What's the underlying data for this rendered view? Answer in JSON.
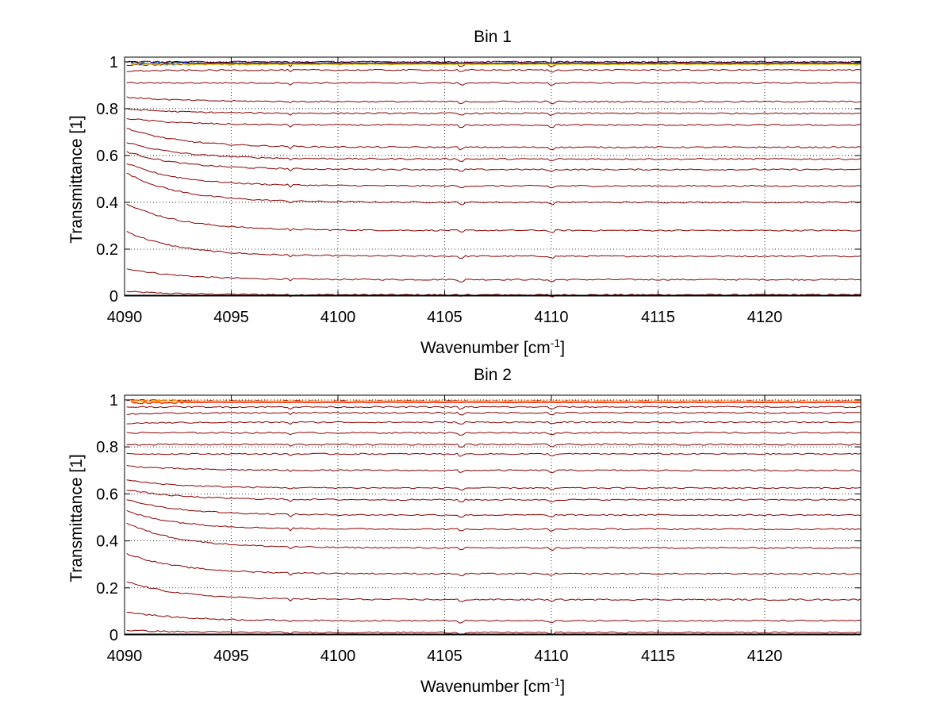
{
  "chart_data": [
    {
      "type": "line",
      "title": "Bin 1",
      "xlabel": "Wavenumber [cm",
      "xlabel_superscript": "-1",
      "xlabel_suffix": "]",
      "ylabel": "Transmittance [1]",
      "xlim": [
        4090,
        4124.5
      ],
      "ylim": [
        0,
        1.02
      ],
      "xticks": [
        4090,
        4095,
        4100,
        4105,
        4110,
        4115,
        4120
      ],
      "xtick_labels": [
        "4090",
        "4095",
        "4100",
        "4105",
        "4110",
        "4115",
        "4120"
      ],
      "yticks": [
        0,
        0.2,
        0.4,
        0.6,
        0.8,
        1
      ],
      "ytick_labels": [
        "0",
        "0.2",
        "0.4",
        "0.6",
        "0.8",
        "1"
      ],
      "grid": true,
      "series_color": "#8b0000",
      "top_series_colors": [
        "#000000",
        "#0000ff",
        "#00aaff",
        "#ffcc00"
      ],
      "series": [
        {
          "name": "s1",
          "start": 0.02,
          "plateau": 0.005
        },
        {
          "name": "s2",
          "start": 0.12,
          "plateau": 0.07
        },
        {
          "name": "s3",
          "start": 0.28,
          "plateau": 0.17
        },
        {
          "name": "s4",
          "start": 0.4,
          "plateau": 0.28
        },
        {
          "name": "s5",
          "start": 0.53,
          "plateau": 0.4
        },
        {
          "name": "s6",
          "start": 0.57,
          "plateau": 0.47
        },
        {
          "name": "s7",
          "start": 0.62,
          "plateau": 0.54
        },
        {
          "name": "s8",
          "start": 0.66,
          "plateau": 0.585
        },
        {
          "name": "s9",
          "start": 0.72,
          "plateau": 0.635
        },
        {
          "name": "s10",
          "start": 0.76,
          "plateau": 0.73
        },
        {
          "name": "s11",
          "start": 0.8,
          "plateau": 0.78
        },
        {
          "name": "s12",
          "start": 0.85,
          "plateau": 0.83
        },
        {
          "name": "s13",
          "start": 0.91,
          "plateau": 0.91
        },
        {
          "name": "s14",
          "start": 0.96,
          "plateau": 0.965
        },
        {
          "name": "s15",
          "start": 0.985,
          "plateau": 0.99
        },
        {
          "name": "s16",
          "start": 1.0,
          "plateau": 1.0
        }
      ]
    },
    {
      "type": "line",
      "title": "Bin 2",
      "xlabel": "Wavenumber [cm",
      "xlabel_superscript": "-1",
      "xlabel_suffix": "]",
      "ylabel": "Transmittance [1]",
      "xlim": [
        4090,
        4124.5
      ],
      "ylim": [
        0,
        1.02
      ],
      "xticks": [
        4090,
        4095,
        4100,
        4105,
        4110,
        4115,
        4120
      ],
      "xtick_labels": [
        "4090",
        "4095",
        "4100",
        "4105",
        "4110",
        "4115",
        "4120"
      ],
      "yticks": [
        0,
        0.2,
        0.4,
        0.6,
        0.8,
        1
      ],
      "ytick_labels": [
        "0",
        "0.2",
        "0.4",
        "0.6",
        "0.8",
        "1"
      ],
      "grid": true,
      "series_color": "#8b0000",
      "top_series_colors": [
        "#ff6600",
        "#ffcc00",
        "#ffff66",
        "#ff0000"
      ],
      "series": [
        {
          "name": "s1",
          "start": 0.02,
          "plateau": 0.01
        },
        {
          "name": "s2",
          "start": 0.1,
          "plateau": 0.06
        },
        {
          "name": "s3",
          "start": 0.23,
          "plateau": 0.15
        },
        {
          "name": "s4",
          "start": 0.35,
          "plateau": 0.26
        },
        {
          "name": "s5",
          "start": 0.48,
          "plateau": 0.37
        },
        {
          "name": "s6",
          "start": 0.53,
          "plateau": 0.45
        },
        {
          "name": "s7",
          "start": 0.58,
          "plateau": 0.51
        },
        {
          "name": "s8",
          "start": 0.62,
          "plateau": 0.575
        },
        {
          "name": "s9",
          "start": 0.66,
          "plateau": 0.625
        },
        {
          "name": "s10",
          "start": 0.72,
          "plateau": 0.7
        },
        {
          "name": "s11",
          "start": 0.77,
          "plateau": 0.77
        },
        {
          "name": "s12",
          "start": 0.81,
          "plateau": 0.81
        },
        {
          "name": "s13",
          "start": 0.86,
          "plateau": 0.86
        },
        {
          "name": "s14",
          "start": 0.9,
          "plateau": 0.905
        },
        {
          "name": "s15",
          "start": 0.94,
          "plateau": 0.945
        },
        {
          "name": "s16",
          "start": 0.97,
          "plateau": 0.97
        },
        {
          "name": "s17",
          "start": 1.0,
          "plateau": 0.995
        }
      ]
    }
  ]
}
